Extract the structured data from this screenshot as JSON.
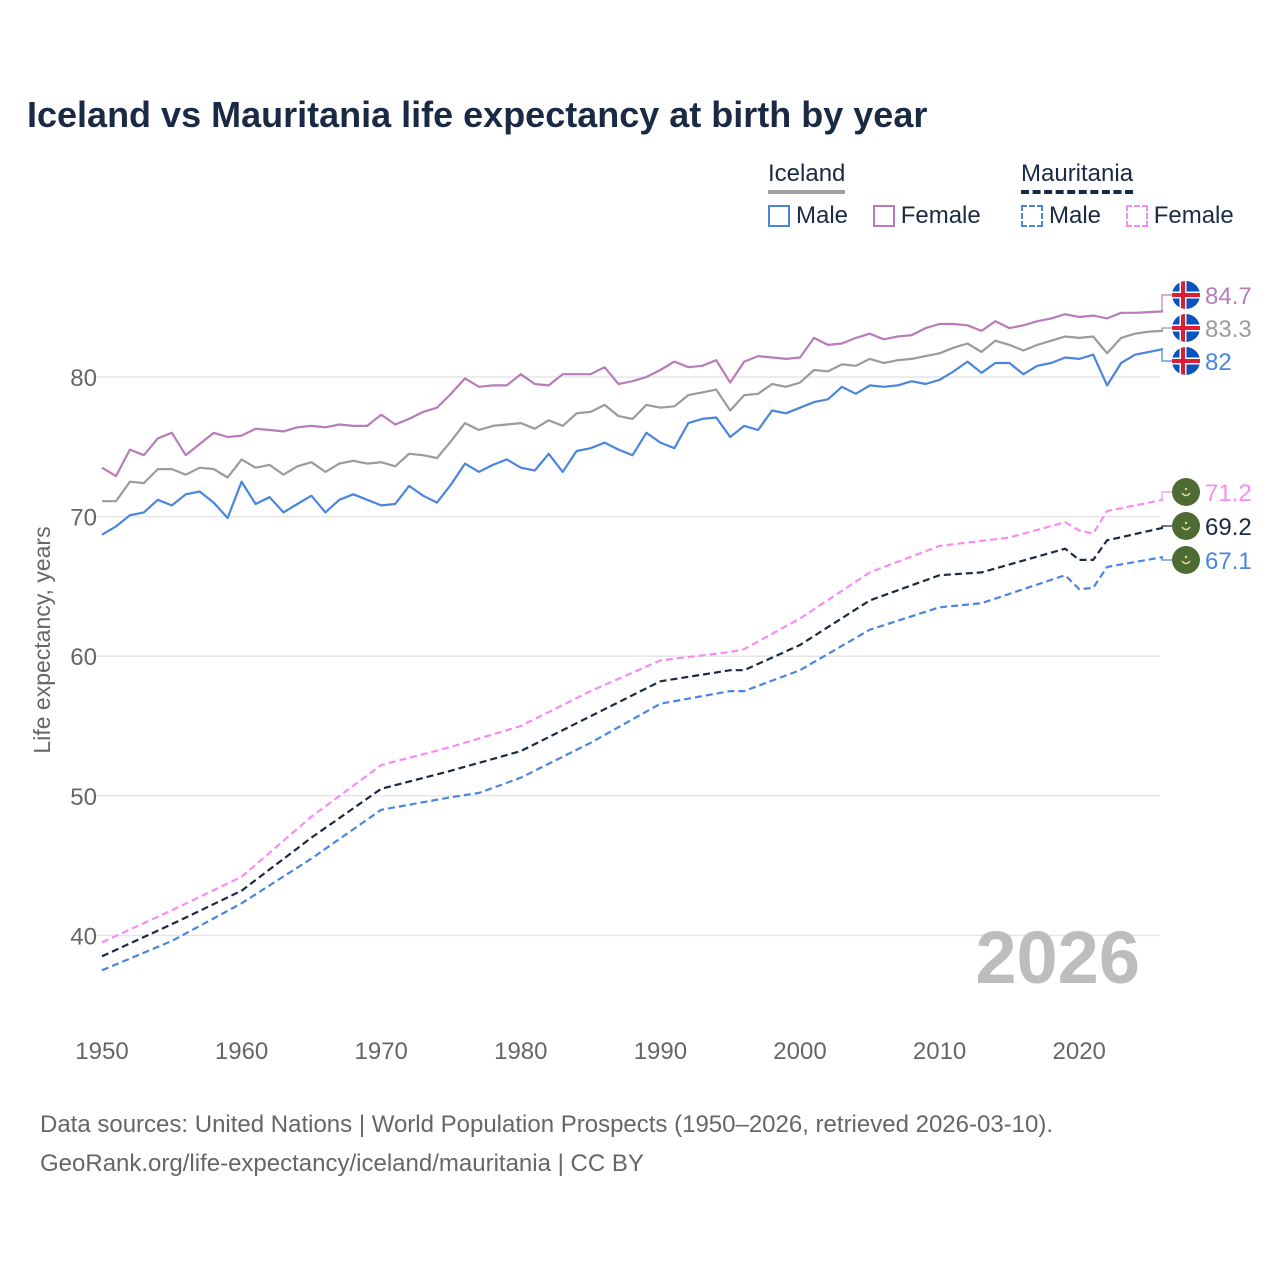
{
  "chart_data": {
    "type": "line",
    "title": "Iceland vs Mauritania life expectancy at birth by year",
    "ylabel": "Life expectancy, years",
    "xlabel": "",
    "xlim": [
      1950,
      2026
    ],
    "ylim": [
      35,
      88
    ],
    "x_ticks": [
      1950,
      1960,
      1970,
      1980,
      1990,
      2000,
      2010,
      2020
    ],
    "y_ticks": [
      40,
      50,
      60,
      70,
      80
    ],
    "grid": true,
    "watermark_year": "2026",
    "legend": {
      "placement": "top-right",
      "groups": [
        {
          "name": "Iceland",
          "items": [
            "Male",
            "Female"
          ]
        },
        {
          "name": "Mauritania",
          "items": [
            "Male",
            "Female"
          ]
        }
      ]
    },
    "series": [
      {
        "name": "Iceland Female",
        "country": "Iceland",
        "color": "#b77cb9",
        "dash": false,
        "end_label": "84.7",
        "x_start": 1950,
        "values": [
          73.5,
          72.9,
          74.8,
          74.4,
          75.6,
          76.0,
          74.4,
          75.2,
          76.0,
          75.7,
          75.8,
          76.3,
          76.2,
          76.1,
          76.4,
          76.5,
          76.4,
          76.6,
          76.5,
          76.5,
          77.3,
          76.6,
          77.0,
          77.5,
          77.8,
          78.8,
          79.9,
          79.3,
          79.4,
          79.4,
          80.2,
          79.5,
          79.4,
          80.2,
          80.2,
          80.2,
          80.7,
          79.5,
          79.7,
          80.0,
          80.5,
          81.1,
          80.7,
          80.8,
          81.2,
          79.6,
          81.1,
          81.5,
          81.4,
          81.3,
          81.4,
          82.8,
          82.3,
          82.4,
          82.8,
          83.1,
          82.7,
          82.9,
          83.0,
          83.5,
          83.8,
          83.8,
          83.7,
          83.3,
          84.0,
          83.5,
          83.7,
          84.0,
          84.2,
          84.5,
          84.3,
          84.4,
          84.2,
          84.6,
          84.6,
          84.65,
          84.7
        ]
      },
      {
        "name": "Iceland Total",
        "country": "Iceland",
        "color": "#9b9b9b",
        "dash": false,
        "end_label": "83.3",
        "x_start": 1950,
        "values": [
          71.1,
          71.1,
          72.5,
          72.4,
          73.4,
          73.4,
          73.0,
          73.5,
          73.4,
          72.8,
          74.1,
          73.5,
          73.7,
          73.0,
          73.6,
          73.9,
          73.2,
          73.8,
          74.0,
          73.8,
          73.9,
          73.6,
          74.5,
          74.4,
          74.2,
          75.4,
          76.7,
          76.2,
          76.5,
          76.6,
          76.7,
          76.3,
          76.9,
          76.5,
          77.4,
          77.5,
          78.0,
          77.2,
          77.0,
          78.0,
          77.8,
          77.9,
          78.7,
          78.9,
          79.1,
          77.6,
          78.7,
          78.8,
          79.5,
          79.3,
          79.6,
          80.5,
          80.4,
          80.9,
          80.8,
          81.3,
          81.0,
          81.2,
          81.3,
          81.5,
          81.7,
          82.1,
          82.4,
          81.8,
          82.6,
          82.3,
          81.9,
          82.3,
          82.6,
          82.9,
          82.8,
          82.9,
          81.7,
          82.8,
          83.1,
          83.25,
          83.3
        ]
      },
      {
        "name": "Iceland Male",
        "country": "Iceland",
        "color": "#4a86e0",
        "dash": false,
        "end_label": "82",
        "x_start": 1950,
        "values": [
          68.7,
          69.3,
          70.1,
          70.3,
          71.2,
          70.8,
          71.6,
          71.8,
          71.0,
          69.9,
          72.5,
          70.9,
          71.4,
          70.3,
          70.9,
          71.5,
          70.3,
          71.2,
          71.6,
          71.2,
          70.8,
          70.9,
          72.2,
          71.5,
          71.0,
          72.3,
          73.8,
          73.2,
          73.7,
          74.1,
          73.5,
          73.3,
          74.5,
          73.2,
          74.7,
          74.9,
          75.3,
          74.8,
          74.4,
          76.0,
          75.3,
          74.9,
          76.7,
          77.0,
          77.1,
          75.7,
          76.5,
          76.2,
          77.6,
          77.4,
          77.8,
          78.2,
          78.4,
          79.3,
          78.8,
          79.4,
          79.3,
          79.4,
          79.7,
          79.5,
          79.8,
          80.4,
          81.1,
          80.3,
          81.0,
          81.0,
          80.2,
          80.8,
          81.0,
          81.4,
          81.3,
          81.6,
          79.4,
          81.0,
          81.6,
          81.8,
          82.0
        ]
      },
      {
        "name": "Mauritania Female",
        "country": "Mauritania",
        "color": "#f98cf2",
        "dash": true,
        "end_label": "71.2",
        "x": [
          1950,
          1955,
          1960,
          1965,
          1970,
          1975,
          1980,
          1985,
          1990,
          1995,
          1996,
          2000,
          2005,
          2010,
          2015,
          2019,
          2020,
          2021,
          2022,
          2026
        ],
        "y": [
          39.5,
          41.8,
          44.2,
          48.5,
          52.2,
          53.5,
          55.0,
          57.5,
          59.7,
          60.3,
          60.5,
          62.7,
          66.0,
          67.9,
          68.5,
          69.6,
          69.0,
          68.8,
          70.4,
          71.2
        ]
      },
      {
        "name": "Mauritania Total",
        "country": "Mauritania",
        "color": "#1b2a44",
        "dash": true,
        "end_label": "69.2",
        "x": [
          1950,
          1955,
          1960,
          1965,
          1970,
          1975,
          1980,
          1985,
          1990,
          1995,
          1996,
          2000,
          2005,
          2010,
          2013,
          2019,
          2020,
          2021,
          2022,
          2026
        ],
        "y": [
          38.5,
          40.8,
          43.2,
          47.0,
          50.5,
          51.8,
          53.2,
          55.7,
          58.2,
          59.0,
          59.0,
          60.8,
          64.0,
          65.8,
          66.0,
          67.7,
          66.9,
          66.9,
          68.3,
          69.2
        ]
      },
      {
        "name": "Mauritania Male",
        "country": "Mauritania",
        "color": "#4a86e0",
        "dash": true,
        "end_label": "67.1",
        "x": [
          1950,
          1955,
          1960,
          1965,
          1970,
          1975,
          1977,
          1980,
          1985,
          1990,
          1995,
          1996,
          2000,
          2005,
          2010,
          2013,
          2019,
          2020,
          2021,
          2022,
          2026
        ],
        "y": [
          37.5,
          39.6,
          42.3,
          45.5,
          49.0,
          49.9,
          50.2,
          51.3,
          53.8,
          56.6,
          57.5,
          57.5,
          59.0,
          61.9,
          63.5,
          63.8,
          65.8,
          64.8,
          64.9,
          66.4,
          67.1
        ]
      }
    ],
    "source_lines": [
      "Data sources: United Nations | World Population Prospects (1950–2026, retrieved 2026-03-10).",
      "GeoRank.org/life-expectancy/iceland/mauritania | CC BY"
    ]
  },
  "legend_labels": {
    "iceland": "Iceland",
    "mauritania": "Mauritania",
    "male": "Male",
    "female": "Female"
  }
}
